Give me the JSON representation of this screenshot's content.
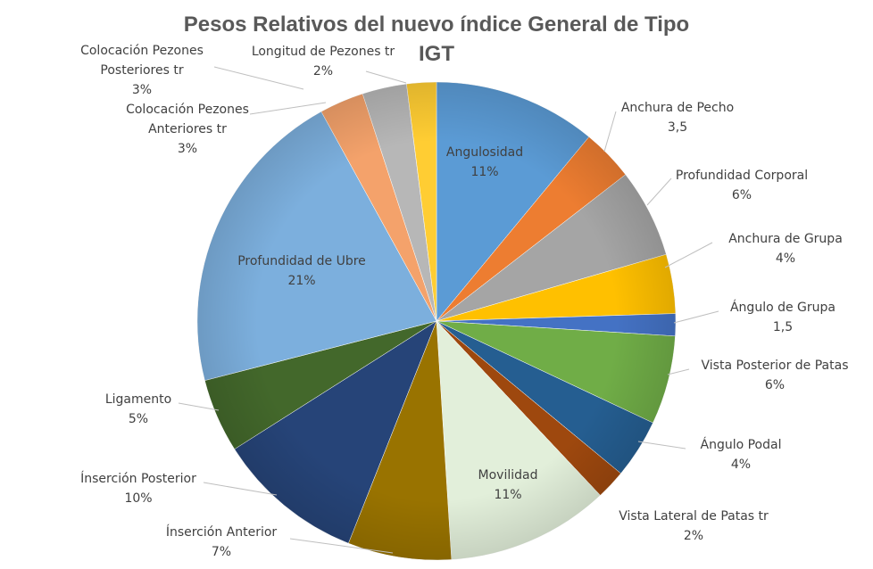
{
  "chart_data": {
    "type": "pie",
    "title_line1": "Pesos Relativos del nuevo índice General de Tipo",
    "title_line2": "IGT",
    "slices": [
      {
        "label": "Angulosidad",
        "value_label": "11%",
        "value": 11,
        "color": "#5b9bd5"
      },
      {
        "label": "Anchura de Pecho",
        "value_label": "3,5",
        "value": 3.5,
        "color": "#ed7d31"
      },
      {
        "label": "Profundidad Corporal",
        "value_label": "6%",
        "value": 6,
        "color": "#a5a5a5"
      },
      {
        "label": "Anchura de Grupa",
        "value_label": "4%",
        "value": 4,
        "color": "#ffc000"
      },
      {
        "label": "Ángulo de Grupa",
        "value_label": "1,5",
        "value": 1.5,
        "color": "#4472c4"
      },
      {
        "label": "Vista Posterior de Patas",
        "value_label": "6%",
        "value": 6,
        "color": "#70ad47"
      },
      {
        "label": "Ángulo Podal",
        "value_label": "4%",
        "value": 4,
        "color": "#255e91"
      },
      {
        "label": "Vista Lateral de Patas tr",
        "value_label": "2%",
        "value": 2,
        "color": "#9e480e"
      },
      {
        "label": "Movilidad",
        "value_label": "11%",
        "value": 11,
        "color": "#e2efda"
      },
      {
        "label": "Ínserción Anterior",
        "value_label": "7%",
        "value": 7,
        "color": "#997300"
      },
      {
        "label": "Ínserción Posterior",
        "value_label": "10%",
        "value": 10,
        "color": "#264478"
      },
      {
        "label": "Ligamento",
        "value_label": "5%",
        "value": 5,
        "color": "#43682b"
      },
      {
        "label": "Profundidad de Ubre",
        "value_label": "21%",
        "value": 21,
        "color": "#7cafdd"
      },
      {
        "label": "Colocación Pezones Anteriores tr",
        "value_label": "3%",
        "value": 3,
        "color": "#f4a26b"
      },
      {
        "label": "Colocación Pezones Posteriores tr",
        "value_label": "3%",
        "value": 3,
        "color": "#b7b7b7"
      },
      {
        "label": "Longitud de Pezones tr",
        "value_label": "2%",
        "value": 2,
        "color": "#ffcd33"
      }
    ]
  }
}
